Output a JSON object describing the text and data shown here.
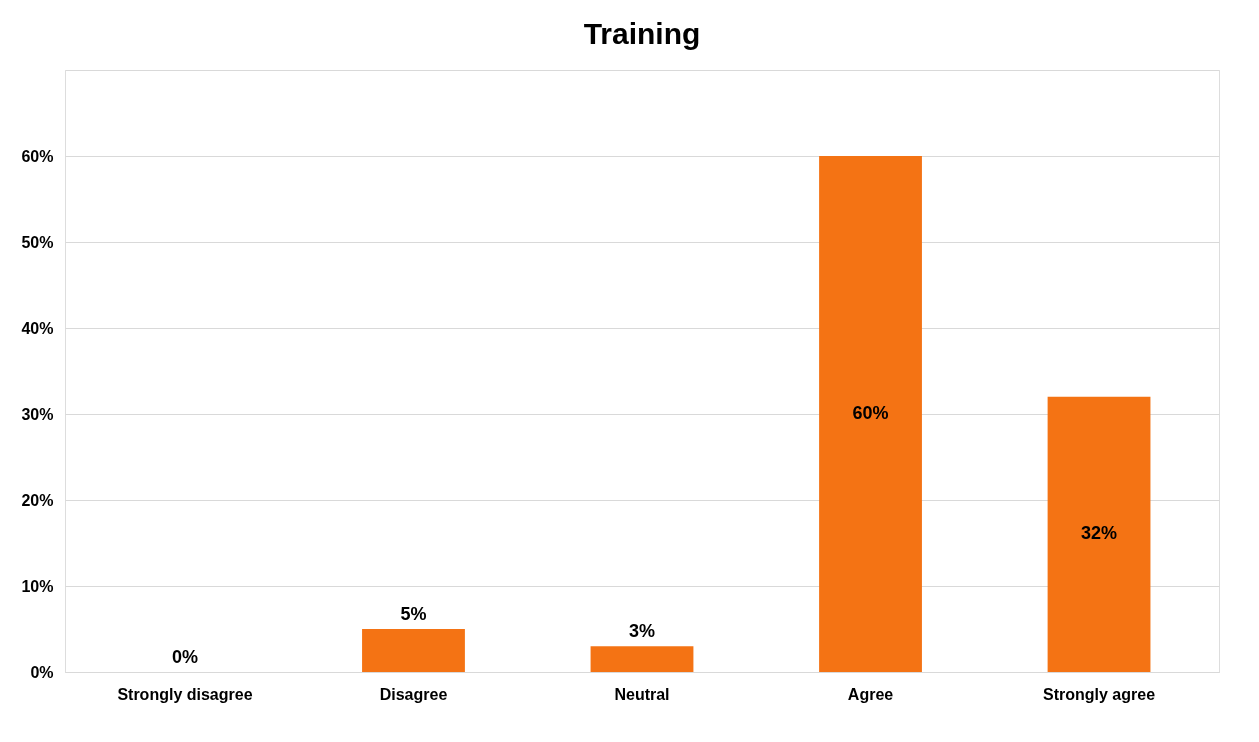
{
  "chart_data": {
    "type": "bar",
    "title": "Training",
    "categories": [
      "Strongly disagree",
      "Disagree",
      "Neutral",
      "Agree",
      "Strongly agree"
    ],
    "values": [
      0,
      5,
      3,
      60,
      32
    ],
    "value_labels": [
      "0%",
      "5%",
      "3%",
      "60%",
      "32%"
    ],
    "color": "#f47314",
    "ylim": [
      0,
      70
    ],
    "yticks": [
      {
        "value": 0,
        "label": "0%"
      },
      {
        "value": 10,
        "label": "10%"
      },
      {
        "value": 20,
        "label": "20%"
      },
      {
        "value": 30,
        "label": "30%"
      },
      {
        "value": 40,
        "label": "40%"
      },
      {
        "value": 50,
        "label": "50%"
      },
      {
        "value": 60,
        "label": "60%"
      },
      {
        "value": 70,
        "label": null
      }
    ],
    "grid": "y"
  }
}
